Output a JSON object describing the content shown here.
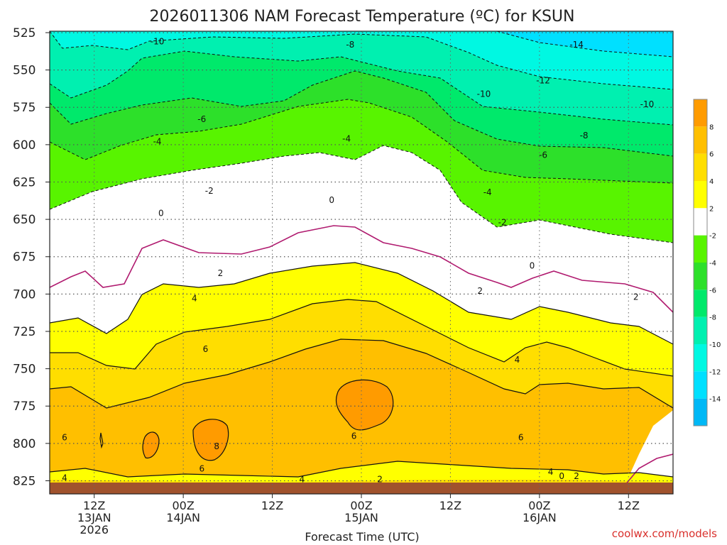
{
  "chart_data": {
    "type": "heatmap",
    "title": "2026011306 NAM Forecast Temperature (ºC) for KSUN",
    "xlabel": "Forecast Time (UTC)",
    "ylabel": "",
    "y_axis": {
      "ticks": [
        525,
        550,
        575,
        600,
        625,
        650,
        675,
        700,
        725,
        750,
        775,
        800,
        825
      ],
      "range": [
        525,
        830
      ],
      "unit": "hPa"
    },
    "x_axis": {
      "forecast_hours": [
        6,
        18,
        30,
        42,
        54,
        66,
        78
      ],
      "range_hours": [
        0,
        84
      ],
      "ticks": [
        {
          "hour": 6,
          "labels": [
            "12Z",
            "13JAN",
            "2026"
          ]
        },
        {
          "hour": 18,
          "labels": [
            "00Z",
            "14JAN"
          ]
        },
        {
          "hour": 30,
          "labels": [
            "12Z"
          ]
        },
        {
          "hour": 42,
          "labels": [
            "00Z",
            "15JAN"
          ]
        },
        {
          "hour": 54,
          "labels": [
            "12Z"
          ]
        },
        {
          "hour": 66,
          "labels": [
            "00Z",
            "16JAN"
          ]
        },
        {
          "hour": 78,
          "labels": [
            "12Z"
          ]
        }
      ]
    },
    "grid": true,
    "colorbar": {
      "placement": "right",
      "labels": [
        "8",
        "6",
        "4",
        "2",
        "-2",
        "-4",
        "-6",
        "-8",
        "-10",
        "-12",
        "-14"
      ],
      "colors": [
        "#ff9b00",
        "#ffbf00",
        "#ffde00",
        "#ffff00",
        "#ffffff",
        "#58f400",
        "#2de02a",
        "#00e96b",
        "#00f0b0",
        "#00f8e2",
        "#00e0ff",
        "#00b8f6"
      ]
    },
    "contour_labels": [
      {
        "value": "-14",
        "hour": 71.0,
        "p": 533
      },
      {
        "value": "-12",
        "hour": 66.5,
        "p": 557
      },
      {
        "value": "-10",
        "hour": 14.5,
        "p": 531
      },
      {
        "value": "-10",
        "hour": 58.5,
        "p": 566
      },
      {
        "value": "-10",
        "hour": 80.5,
        "p": 573
      },
      {
        "value": "-8",
        "hour": 40.5,
        "p": 533
      },
      {
        "value": "-8",
        "hour": 72.0,
        "p": 594
      },
      {
        "value": "-6",
        "hour": 20.5,
        "p": 583
      },
      {
        "value": "-6",
        "hour": 66.5,
        "p": 607
      },
      {
        "value": "-4",
        "hour": 14.5,
        "p": 598
      },
      {
        "value": "-4",
        "hour": 40.0,
        "p": 596
      },
      {
        "value": "-4",
        "hour": 59.0,
        "p": 632
      },
      {
        "value": "-2",
        "hour": 21.5,
        "p": 631
      },
      {
        "value": "-2",
        "hour": 61.0,
        "p": 652
      },
      {
        "value": "0",
        "hour": 15.0,
        "p": 646
      },
      {
        "value": "0",
        "hour": 38.0,
        "p": 637
      },
      {
        "value": "0",
        "hour": 65.0,
        "p": 681
      },
      {
        "value": "2",
        "hour": 23.0,
        "p": 686
      },
      {
        "value": "2",
        "hour": 58.0,
        "p": 698
      },
      {
        "value": "2",
        "hour": 79.0,
        "p": 702
      },
      {
        "value": "4",
        "hour": 19.5,
        "p": 703
      },
      {
        "value": "4",
        "hour": 63.0,
        "p": 744
      },
      {
        "value": "6",
        "hour": 21.0,
        "p": 737
      },
      {
        "value": "6",
        "hour": 2.0,
        "p": 796
      },
      {
        "value": "6",
        "hour": 41.0,
        "p": 795
      },
      {
        "value": "6",
        "hour": 63.5,
        "p": 796
      },
      {
        "value": "6",
        "hour": 20.5,
        "p": 817
      },
      {
        "value": "8",
        "hour": 22.5,
        "p": 802
      },
      {
        "value": "4",
        "hour": 2.0,
        "p": 823
      },
      {
        "value": "4",
        "hour": 34.0,
        "p": 824
      },
      {
        "value": "4",
        "hour": 67.5,
        "p": 819
      },
      {
        "value": "2",
        "hour": 44.5,
        "p": 824
      },
      {
        "value": "0",
        "hour": 69.0,
        "p": 822
      },
      {
        "value": "2",
        "hour": 71.0,
        "p": 822
      }
    ]
  },
  "credit": "coolwx.com/models"
}
